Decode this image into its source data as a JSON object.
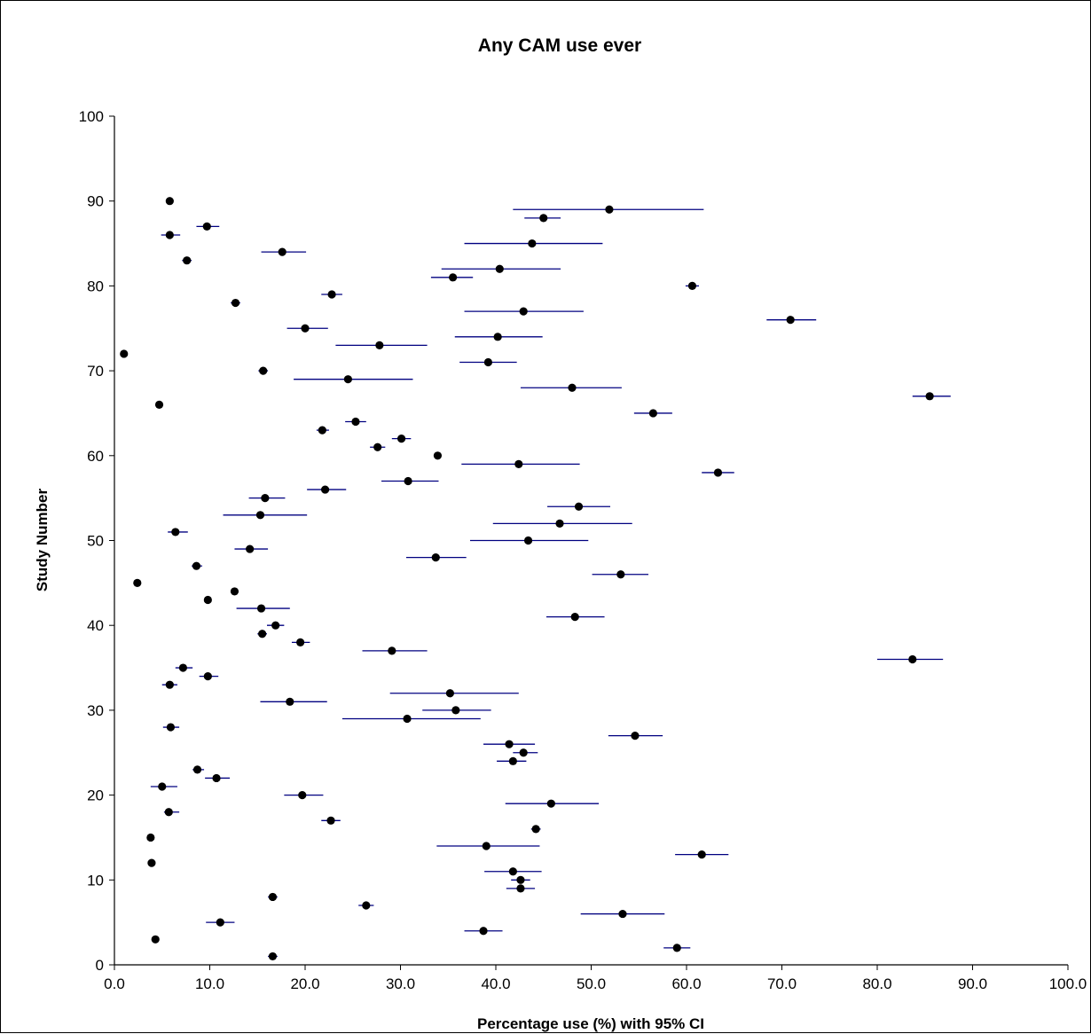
{
  "chart_data": {
    "type": "scatter",
    "title": "Any CAM use ever",
    "xlabel": "Percentage use (%) with 95% CI",
    "ylabel": "Study Number",
    "xlim": [
      0,
      100
    ],
    "ylim": [
      0,
      100
    ],
    "x_ticks": [
      "0.0",
      "10.0",
      "20.0",
      "30.0",
      "40.0",
      "50.0",
      "60.0",
      "70.0",
      "80.0",
      "90.0",
      "100.0"
    ],
    "y_ticks": [
      "0",
      "10",
      "20",
      "30",
      "40",
      "50",
      "60",
      "70",
      "80",
      "90",
      "100"
    ],
    "grid": false,
    "legend": "none",
    "point_color": "#000000",
    "ci_color": "#000080",
    "points": [
      {
        "study": 1,
        "value": 16.6,
        "ci": [
          16.1,
          17.1
        ]
      },
      {
        "study": 2,
        "value": 59.0,
        "ci": [
          57.6,
          60.4
        ]
      },
      {
        "study": 3,
        "value": 4.3,
        "ci": [
          4.3,
          4.3
        ]
      },
      {
        "study": 4,
        "value": 38.7,
        "ci": [
          36.7,
          40.7
        ]
      },
      {
        "study": 5,
        "value": 11.1,
        "ci": [
          9.6,
          12.6
        ]
      },
      {
        "study": 6,
        "value": 53.3,
        "ci": [
          48.9,
          57.7
        ]
      },
      {
        "study": 7,
        "value": 26.4,
        "ci": [
          25.6,
          27.2
        ]
      },
      {
        "study": 8,
        "value": 16.6,
        "ci": [
          16.1,
          17.1
        ]
      },
      {
        "study": 9,
        "value": 42.6,
        "ci": [
          41.1,
          44.1
        ]
      },
      {
        "study": 10,
        "value": 42.6,
        "ci": [
          41.6,
          43.6
        ]
      },
      {
        "study": 11,
        "value": 41.8,
        "ci": [
          38.8,
          44.8
        ]
      },
      {
        "study": 12,
        "value": 3.9,
        "ci": [
          3.9,
          3.9
        ]
      },
      {
        "study": 13,
        "value": 61.6,
        "ci": [
          58.8,
          64.4
        ]
      },
      {
        "study": 14,
        "value": 39.0,
        "ci": [
          33.8,
          44.6
        ]
      },
      {
        "study": 15,
        "value": 3.8,
        "ci": [
          3.8,
          3.8
        ]
      },
      {
        "study": 16,
        "value": 44.2,
        "ci": [
          43.7,
          44.7
        ]
      },
      {
        "study": 17,
        "value": 22.7,
        "ci": [
          21.7,
          23.7
        ]
      },
      {
        "study": 18,
        "value": 5.7,
        "ci": [
          5.2,
          6.8
        ]
      },
      {
        "study": 19,
        "value": 45.8,
        "ci": [
          41.0,
          50.8
        ]
      },
      {
        "study": 20,
        "value": 19.7,
        "ci": [
          17.8,
          21.9
        ]
      },
      {
        "study": 21,
        "value": 5.0,
        "ci": [
          3.8,
          6.6
        ]
      },
      {
        "study": 22,
        "value": 10.7,
        "ci": [
          9.5,
          12.1
        ]
      },
      {
        "study": 23,
        "value": 8.7,
        "ci": [
          8.2,
          9.4
        ]
      },
      {
        "study": 24,
        "value": 41.8,
        "ci": [
          40.1,
          43.2
        ]
      },
      {
        "study": 25,
        "value": 42.9,
        "ci": [
          41.8,
          44.4
        ]
      },
      {
        "study": 26,
        "value": 41.4,
        "ci": [
          38.7,
          44.1
        ]
      },
      {
        "study": 27,
        "value": 54.6,
        "ci": [
          51.8,
          57.5
        ]
      },
      {
        "study": 28,
        "value": 5.9,
        "ci": [
          5.1,
          6.8
        ]
      },
      {
        "study": 29,
        "value": 30.7,
        "ci": [
          23.9,
          38.4
        ]
      },
      {
        "study": 30,
        "value": 35.8,
        "ci": [
          32.3,
          39.5
        ]
      },
      {
        "study": 31,
        "value": 18.4,
        "ci": [
          15.3,
          22.3
        ]
      },
      {
        "study": 32,
        "value": 35.2,
        "ci": [
          28.9,
          42.4
        ]
      },
      {
        "study": 33,
        "value": 5.8,
        "ci": [
          5.0,
          6.6
        ]
      },
      {
        "study": 34,
        "value": 9.8,
        "ci": [
          8.9,
          10.9
        ]
      },
      {
        "study": 35,
        "value": 7.2,
        "ci": [
          6.4,
          8.2
        ]
      },
      {
        "study": 36,
        "value": 83.7,
        "ci": [
          80.0,
          86.9
        ]
      },
      {
        "study": 37,
        "value": 29.1,
        "ci": [
          26.0,
          32.8
        ]
      },
      {
        "study": 38,
        "value": 19.5,
        "ci": [
          18.6,
          20.5
        ]
      },
      {
        "study": 39,
        "value": 15.5,
        "ci": [
          15.0,
          16.0
        ]
      },
      {
        "study": 40,
        "value": 16.9,
        "ci": [
          16.0,
          17.8
        ]
      },
      {
        "study": 41,
        "value": 48.3,
        "ci": [
          45.3,
          51.4
        ]
      },
      {
        "study": 42,
        "value": 15.4,
        "ci": [
          12.8,
          18.4
        ]
      },
      {
        "study": 43,
        "value": 9.8,
        "ci": [
          9.8,
          9.8
        ]
      },
      {
        "study": 44,
        "value": 12.6,
        "ci": [
          12.2,
          13.0
        ]
      },
      {
        "study": 45,
        "value": 2.4,
        "ci": [
          2.4,
          2.4
        ]
      },
      {
        "study": 46,
        "value": 53.1,
        "ci": [
          50.1,
          56.0
        ]
      },
      {
        "study": 47,
        "value": 8.6,
        "ci": [
          8.1,
          9.2
        ]
      },
      {
        "study": 48,
        "value": 33.7,
        "ci": [
          30.6,
          36.9
        ]
      },
      {
        "study": 49,
        "value": 14.2,
        "ci": [
          12.6,
          16.1
        ]
      },
      {
        "study": 50,
        "value": 43.4,
        "ci": [
          37.3,
          49.7
        ]
      },
      {
        "study": 51,
        "value": 6.4,
        "ci": [
          5.6,
          7.7
        ]
      },
      {
        "study": 52,
        "value": 46.7,
        "ci": [
          39.7,
          54.3
        ]
      },
      {
        "study": 53,
        "value": 15.3,
        "ci": [
          11.4,
          20.2
        ]
      },
      {
        "study": 54,
        "value": 48.7,
        "ci": [
          45.4,
          52.0
        ]
      },
      {
        "study": 55,
        "value": 15.8,
        "ci": [
          14.1,
          17.9
        ]
      },
      {
        "study": 56,
        "value": 22.1,
        "ci": [
          20.2,
          24.3
        ]
      },
      {
        "study": 57,
        "value": 30.8,
        "ci": [
          28.0,
          34.0
        ]
      },
      {
        "study": 58,
        "value": 63.3,
        "ci": [
          61.6,
          65.0
        ]
      },
      {
        "study": 59,
        "value": 42.4,
        "ci": [
          36.4,
          48.8
        ]
      },
      {
        "study": 60,
        "value": 33.9,
        "ci": [
          33.9,
          33.9
        ]
      },
      {
        "study": 61,
        "value": 27.6,
        "ci": [
          26.8,
          28.4
        ]
      },
      {
        "study": 62,
        "value": 30.1,
        "ci": [
          29.1,
          31.1
        ]
      },
      {
        "study": 63,
        "value": 21.8,
        "ci": [
          21.2,
          22.5
        ]
      },
      {
        "study": 64,
        "value": 25.3,
        "ci": [
          24.2,
          26.4
        ]
      },
      {
        "study": 65,
        "value": 56.5,
        "ci": [
          54.5,
          58.5
        ]
      },
      {
        "study": 66,
        "value": 4.7,
        "ci": [
          4.7,
          4.7
        ]
      },
      {
        "study": 67,
        "value": 85.5,
        "ci": [
          83.7,
          87.7
        ]
      },
      {
        "study": 68,
        "value": 48.0,
        "ci": [
          42.6,
          53.2
        ]
      },
      {
        "study": 69,
        "value": 24.5,
        "ci": [
          18.8,
          31.3
        ]
      },
      {
        "study": 70,
        "value": 15.6,
        "ci": [
          15.1,
          16.1
        ]
      },
      {
        "study": 71,
        "value": 39.2,
        "ci": [
          36.2,
          42.2
        ]
      },
      {
        "study": 72,
        "value": 1.0,
        "ci": [
          1.0,
          1.0
        ]
      },
      {
        "study": 73,
        "value": 27.8,
        "ci": [
          23.2,
          32.8
        ]
      },
      {
        "study": 74,
        "value": 40.2,
        "ci": [
          35.7,
          44.9
        ]
      },
      {
        "study": 75,
        "value": 20.0,
        "ci": [
          18.1,
          22.4
        ]
      },
      {
        "study": 76,
        "value": 70.9,
        "ci": [
          68.4,
          73.6
        ]
      },
      {
        "study": 77,
        "value": 42.9,
        "ci": [
          36.7,
          49.2
        ]
      },
      {
        "study": 78,
        "value": 12.7,
        "ci": [
          12.2,
          13.2
        ]
      },
      {
        "study": 79,
        "value": 22.8,
        "ci": [
          21.7,
          23.9
        ]
      },
      {
        "study": 80,
        "value": 60.6,
        "ci": [
          59.9,
          61.3
        ]
      },
      {
        "study": 81,
        "value": 35.5,
        "ci": [
          33.2,
          37.6
        ]
      },
      {
        "study": 82,
        "value": 40.4,
        "ci": [
          34.3,
          46.8
        ]
      },
      {
        "study": 83,
        "value": 7.6,
        "ci": [
          7.1,
          8.1
        ]
      },
      {
        "study": 84,
        "value": 17.6,
        "ci": [
          15.4,
          20.1
        ]
      },
      {
        "study": 85,
        "value": 43.8,
        "ci": [
          36.7,
          51.2
        ]
      },
      {
        "study": 86,
        "value": 5.8,
        "ci": [
          4.9,
          6.9
        ]
      },
      {
        "study": 87,
        "value": 9.7,
        "ci": [
          8.6,
          11.0
        ]
      },
      {
        "study": 88,
        "value": 45.0,
        "ci": [
          43.0,
          46.8
        ]
      },
      {
        "study": 89,
        "value": 51.9,
        "ci": [
          41.8,
          61.8
        ]
      },
      {
        "study": 90,
        "value": 5.8,
        "ci": [
          5.8,
          5.8
        ]
      }
    ]
  }
}
